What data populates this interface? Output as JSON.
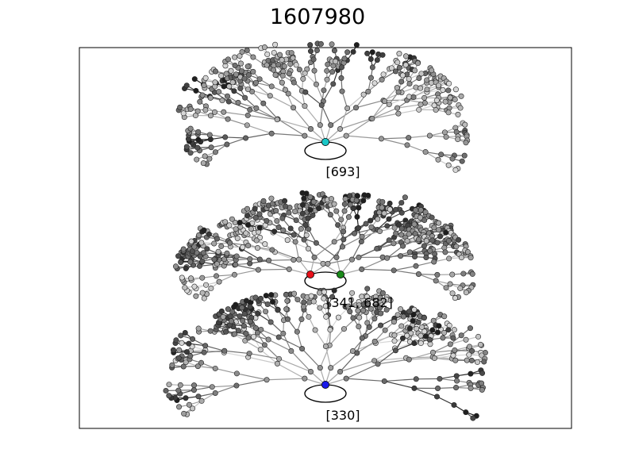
{
  "title": "1607980",
  "colors": {
    "frame": "#000000",
    "cyan_node": "#1ac6c6",
    "red_node": "#e8101a",
    "green_node": "#1a8a1a",
    "blue_node": "#1a1ae8"
  },
  "panels": [
    {
      "label": "[693]",
      "highlight": [
        "cyan_node"
      ]
    },
    {
      "label": "[341, 682]",
      "highlight": [
        "red_node",
        "green_node"
      ]
    },
    {
      "label": "[330]",
      "highlight": [
        "blue_node"
      ]
    }
  ]
}
